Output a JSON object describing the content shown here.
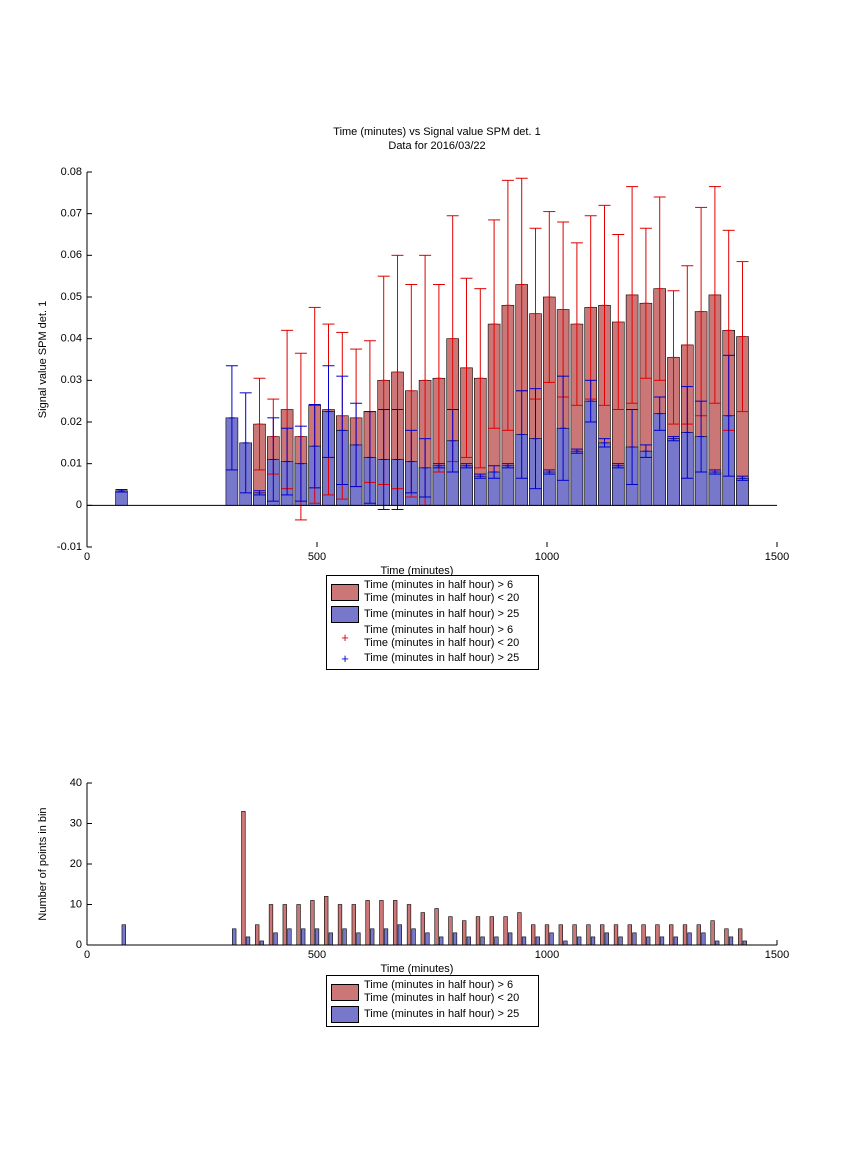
{
  "chart_data": [
    {
      "type": "bar",
      "title": "Time (minutes) vs Signal value SPM det. 1",
      "subtitle": "Data for 2016/03/22",
      "xlabel": "Time (minutes)",
      "ylabel": "Signal value SPM det. 1",
      "xlim": [
        0,
        1500
      ],
      "xticks": [
        0,
        500,
        1000,
        1500
      ],
      "ylim": [
        -0.01,
        0.08
      ],
      "yticks": [
        -0.01,
        0,
        0.01,
        0.02,
        0.03,
        0.04,
        0.05,
        0.06,
        0.07,
        0.08
      ],
      "series": [
        {
          "name": "Time (minutes in half hour) > 6\nTime (minutes in half hour) < 20",
          "color": "#cc7777",
          "error_color": "#e00000",
          "x": [
            375,
            405,
            435,
            465,
            495,
            525,
            555,
            585,
            615,
            645,
            675,
            705,
            735,
            765,
            795,
            825,
            855,
            885,
            915,
            945,
            975,
            1005,
            1035,
            1065,
            1095,
            1125,
            1155,
            1185,
            1215,
            1245,
            1275,
            1305,
            1335,
            1365,
            1395,
            1425
          ],
          "values": [
            0.0195,
            0.0165,
            0.023,
            0.0165,
            0.024,
            0.023,
            0.0215,
            0.021,
            0.0225,
            0.03,
            0.032,
            0.0275,
            0.03,
            0.0305,
            0.04,
            0.033,
            0.0305,
            0.0435,
            0.048,
            0.053,
            0.046,
            0.05,
            0.047,
            0.0435,
            0.0475,
            0.048,
            0.044,
            0.0505,
            0.0485,
            0.052,
            0.0355,
            0.0385,
            0.0465,
            0.0505,
            0.042,
            0.0405
          ],
          "errors": [
            0.011,
            0.009,
            0.019,
            0.02,
            0.0235,
            0.0205,
            0.02,
            0.0165,
            0.017,
            0.025,
            0.028,
            0.0255,
            0.03,
            0.0225,
            0.0295,
            0.0215,
            0.0215,
            0.025,
            0.03,
            0.0255,
            0.0205,
            0.0205,
            0.021,
            0.0195,
            0.022,
            0.024,
            0.021,
            0.026,
            0.018,
            0.022,
            0.016,
            0.019,
            0.025,
            0.026,
            0.024,
            0.018
          ]
        },
        {
          "name": "Time (minutes in half hour) > 25",
          "color": "#7777cc",
          "error_color": "#0000cc",
          "x": [
            75,
            315,
            345,
            375,
            405,
            435,
            465,
            495,
            525,
            555,
            585,
            615,
            645,
            675,
            705,
            735,
            765,
            795,
            825,
            855,
            885,
            915,
            945,
            975,
            1005,
            1035,
            1065,
            1095,
            1125,
            1155,
            1185,
            1215,
            1245,
            1275,
            1305,
            1335,
            1365,
            1395,
            1425
          ],
          "values": [
            0.0035,
            0.021,
            0.015,
            0.003,
            0.011,
            0.0105,
            0.01,
            0.0142,
            0.0225,
            0.018,
            0.0145,
            0.0115,
            0.011,
            0.011,
            0.0105,
            0.009,
            0.0095,
            0.0155,
            0.0095,
            0.007,
            0.008,
            0.0095,
            0.017,
            0.016,
            0.008,
            0.0185,
            0.013,
            0.025,
            0.015,
            0.0095,
            0.014,
            0.013,
            0.022,
            0.016,
            0.0175,
            0.0165,
            0.008,
            0.0215,
            0.0065
          ],
          "errors": [
            0.0003,
            0.0125,
            0.012,
            0.0005,
            0.01,
            0.008,
            0.009,
            0.01,
            0.011,
            0.013,
            0.01,
            0.011,
            0.012,
            0.012,
            0.0075,
            0.007,
            0.0005,
            0.0075,
            0.0005,
            0.0005,
            0.0015,
            0.0005,
            0.0105,
            0.012,
            0.0005,
            0.0125,
            0.0005,
            0.005,
            0.001,
            0.0005,
            0.009,
            0.0015,
            0.004,
            0.0005,
            0.011,
            0.0085,
            0.0005,
            0.0145,
            0.0005
          ]
        }
      ]
    },
    {
      "type": "bar",
      "xlabel": "Time (minutes)",
      "ylabel": "Number of points in bin",
      "xlim": [
        0,
        1500
      ],
      "xticks": [
        0,
        500,
        1000,
        1500
      ],
      "ylim": [
        0,
        40
      ],
      "yticks": [
        0,
        10,
        20,
        30,
        40
      ],
      "series": [
        {
          "name": "Time (minutes in half hour) > 6\nTime (minutes in half hour) < 20",
          "color": "#cc7777",
          "x": [
            340,
            370,
            400,
            430,
            460,
            490,
            520,
            550,
            580,
            610,
            640,
            670,
            700,
            730,
            760,
            790,
            820,
            850,
            880,
            910,
            940,
            970,
            1000,
            1030,
            1060,
            1090,
            1120,
            1150,
            1180,
            1210,
            1240,
            1270,
            1300,
            1330,
            1360,
            1390,
            1420
          ],
          "values": [
            33,
            5,
            10,
            10,
            10,
            11,
            12,
            10,
            10,
            11,
            11,
            11,
            10,
            8,
            9,
            7,
            6,
            7,
            7,
            7,
            8,
            5,
            5,
            5,
            5,
            5,
            5,
            5,
            5,
            5,
            5,
            5,
            5,
            5,
            6,
            4,
            4
          ]
        },
        {
          "name": "Time (minutes in half hour) > 25",
          "color": "#7777cc",
          "x": [
            80,
            320,
            350,
            380,
            410,
            440,
            470,
            500,
            530,
            560,
            590,
            620,
            650,
            680,
            710,
            740,
            770,
            800,
            830,
            860,
            890,
            920,
            950,
            980,
            1010,
            1040,
            1070,
            1100,
            1130,
            1160,
            1190,
            1220,
            1250,
            1280,
            1310,
            1340,
            1370,
            1400,
            1430
          ],
          "values": [
            5,
            4,
            2,
            1,
            3,
            4,
            4,
            4,
            3,
            4,
            3,
            4,
            4,
            5,
            4,
            3,
            2,
            3,
            2,
            2,
            2,
            3,
            2,
            2,
            3,
            1,
            2,
            2,
            3,
            2,
            3,
            2,
            2,
            2,
            3,
            3,
            1,
            2,
            1
          ]
        }
      ]
    }
  ]
}
